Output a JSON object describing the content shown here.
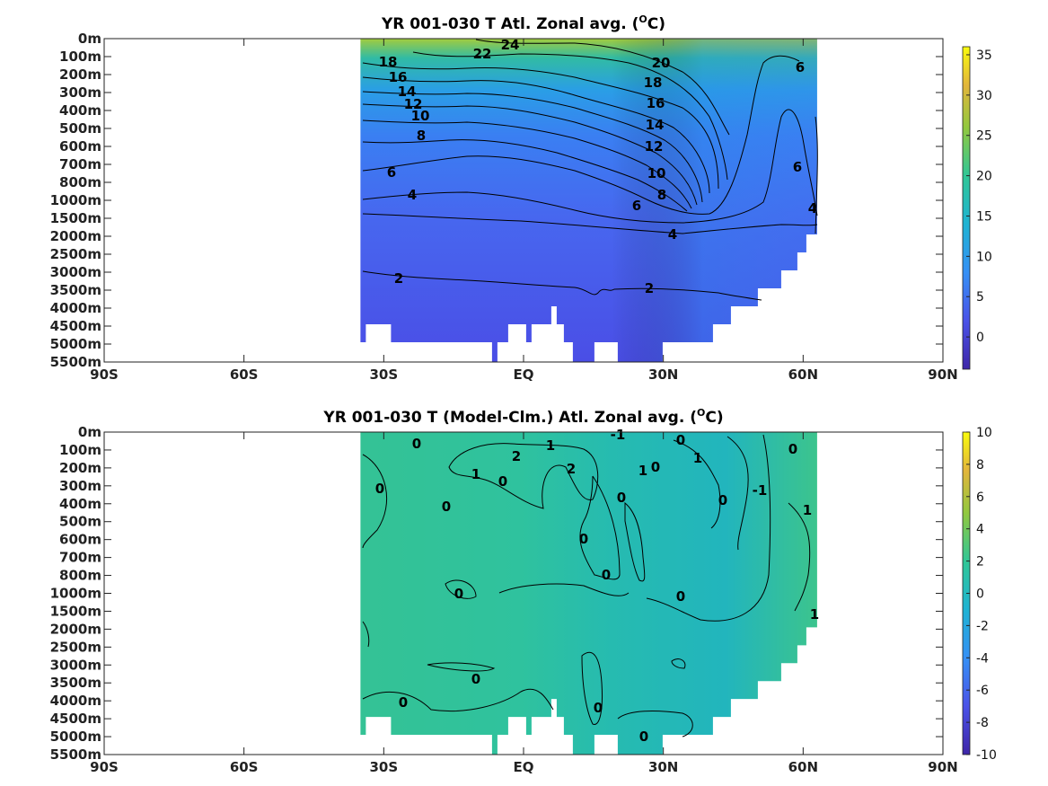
{
  "chart_data": [
    {
      "type": "heatmap",
      "title": "YR 001-030 T Atl. Zonal avg. (",
      "title_sup": "O",
      "title_end": "C)",
      "x_ticks": [
        "90S",
        "60S",
        "30S",
        "EQ",
        "30N",
        "60N",
        "90N"
      ],
      "x_tick_values": [
        -90,
        -60,
        -30,
        0,
        30,
        60,
        90
      ],
      "y_ticks": [
        "0m",
        "100m",
        "200m",
        "300m",
        "400m",
        "500m",
        "600m",
        "700m",
        "800m",
        "1000m",
        "1500m",
        "2000m",
        "2500m",
        "3000m",
        "3500m",
        "4000m",
        "4500m",
        "5000m",
        "5500m"
      ],
      "colorbar": {
        "ticks": [
          "35",
          "30",
          "25",
          "20",
          "15",
          "10",
          "5",
          "0"
        ],
        "tick_values": [
          35,
          30,
          25,
          20,
          15,
          10,
          5,
          0
        ],
        "range": [
          -4,
          36
        ]
      },
      "data_lon_range": [
        -35,
        63
      ],
      "contour_labels": [
        "24",
        "22",
        "20",
        "18",
        "18",
        "16",
        "16",
        "14",
        "14",
        "12",
        "12",
        "10",
        "10",
        "8",
        "8",
        "6",
        "6",
        "6",
        "6",
        "4",
        "4",
        "4",
        "2",
        "2"
      ],
      "colors": {
        "deep": "#4a56e6",
        "mid": "#3d7cf0",
        "warm": "#27b6b0",
        "hot": "#a6cc3a"
      }
    },
    {
      "type": "heatmap",
      "title": "YR 001-030 T (Model-Clm.) Atl. Zonal avg. (",
      "title_sup": "O",
      "title_end": "C)",
      "x_ticks": [
        "90S",
        "60S",
        "30S",
        "EQ",
        "30N",
        "60N",
        "90N"
      ],
      "x_tick_values": [
        -90,
        -60,
        -30,
        0,
        30,
        60,
        90
      ],
      "y_ticks": [
        "0m",
        "100m",
        "200m",
        "300m",
        "400m",
        "500m",
        "600m",
        "700m",
        "800m",
        "1000m",
        "1500m",
        "2000m",
        "2500m",
        "3000m",
        "3500m",
        "4000m",
        "4500m",
        "5000m",
        "5500m"
      ],
      "colorbar": {
        "ticks": [
          "10",
          "8",
          "6",
          "4",
          "2",
          "0",
          "-2",
          "-4",
          "-6",
          "-8",
          "-10"
        ],
        "tick_values": [
          10,
          8,
          6,
          4,
          2,
          0,
          -2,
          -4,
          -6,
          -8,
          -10
        ],
        "range": [
          -10,
          10
        ]
      },
      "data_lon_range": [
        -35,
        63
      ],
      "contour_labels": [
        "0",
        "1",
        "-1",
        "0",
        "0",
        "2",
        "2",
        "1",
        "1",
        "1",
        "0",
        "0",
        "0",
        "-1",
        "1",
        "0",
        "0",
        "0",
        "0",
        "0",
        "0",
        "0",
        "1",
        "0",
        "0",
        "0",
        "0"
      ],
      "colors": {
        "base": "#2bbfa8",
        "warm": "#5cc88a",
        "cool": "#1fa8c8"
      }
    }
  ]
}
